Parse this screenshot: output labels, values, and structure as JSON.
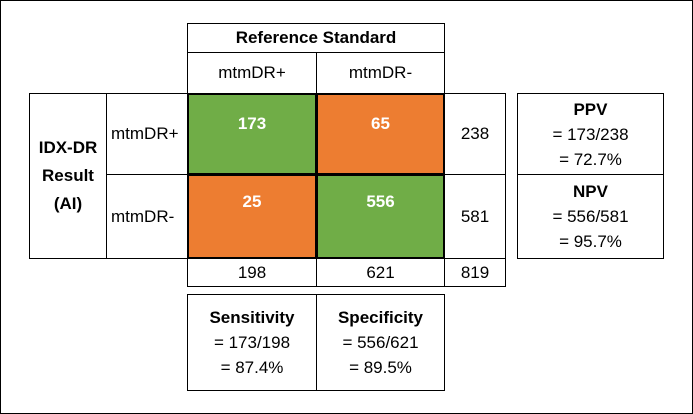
{
  "header": {
    "title": "Reference Standard",
    "col_pos": "mtmDR+",
    "col_neg": "mtmDR-"
  },
  "row_header": {
    "line1": "IDX-DR",
    "line2": "Result",
    "line3": "(AI)"
  },
  "rows": {
    "pos_label": "mtmDR+",
    "neg_label": "mtmDR-"
  },
  "matrix": {
    "tp": "173",
    "fp": "65",
    "fn": "25",
    "tn": "556",
    "colors": {
      "correct": "#70ad47",
      "incorrect": "#ed7d31"
    }
  },
  "totals": {
    "row_pos": "238",
    "row_neg": "581",
    "col_pos": "198",
    "col_neg": "621",
    "grand": "819"
  },
  "ppv": {
    "title": "PPV",
    "formula": "= 173/238",
    "result": "= 72.7%"
  },
  "npv": {
    "title": "NPV",
    "formula": "= 556/581",
    "result": "= 95.7%"
  },
  "sensitivity": {
    "title": "Sensitivity",
    "formula": "= 173/198",
    "result": "= 87.4%"
  },
  "specificity": {
    "title": "Specificity",
    "formula": "= 556/621",
    "result": "= 89.5%"
  }
}
